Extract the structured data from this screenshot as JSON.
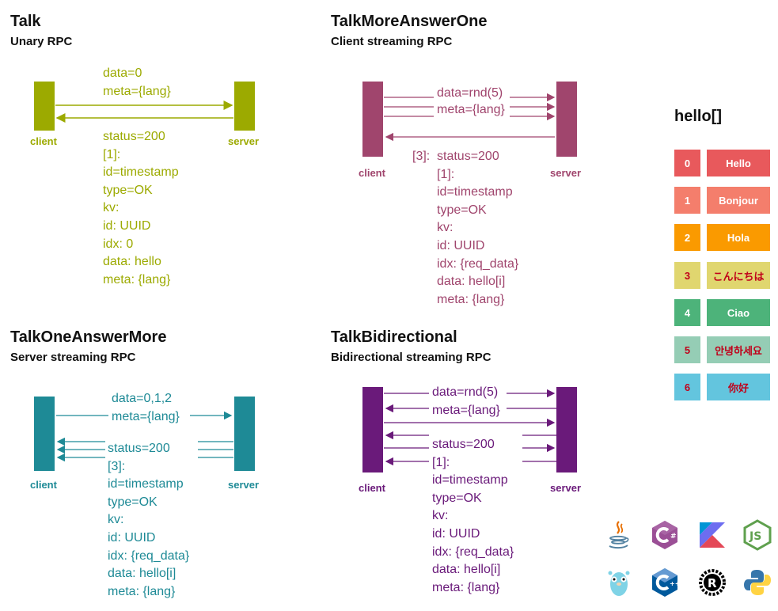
{
  "talk": {
    "title": "Talk",
    "subtitle": "Unary RPC",
    "client": "client",
    "server": "server",
    "request_lines": [
      "data=0",
      "meta={lang}"
    ],
    "response_lines": [
      "status=200",
      "[1]:",
      "id=timestamp",
      "type=OK",
      "kv:",
      "id: UUID",
      "idx: 0",
      "data: hello",
      "meta: {lang}"
    ],
    "color": "#9caa00"
  },
  "more_answer_one": {
    "title": "TalkMoreAnswerOne",
    "subtitle": "Client streaming RPC",
    "client": "client",
    "server": "server",
    "request_lines": [
      "data=rnd(5)",
      "meta={lang}"
    ],
    "count": "[3]:",
    "response_lines": [
      "status=200",
      "[1]:",
      "id=timestamp",
      "type=OK",
      "kv:",
      "id: UUID",
      "idx: {req_data}",
      "data: hello[i]",
      "meta: {lang}"
    ],
    "color": "#a0456d"
  },
  "one_answer_more": {
    "title": "TalkOneAnswerMore",
    "subtitle": "Server streaming RPC",
    "client": "client",
    "server": "server",
    "request_lines": [
      "data=0,1,2",
      "meta={lang}"
    ],
    "response_lines": [
      "status=200",
      "[3]:",
      "id=timestamp",
      "type=OK",
      "kv:",
      "id: UUID",
      "idx: {req_data}",
      "data: hello[i]",
      "meta: {lang}"
    ],
    "color": "#1e8a96"
  },
  "bidirectional": {
    "title": "TalkBidirectional",
    "subtitle": "Bidirectional streaming RPC",
    "client": "client",
    "server": "server",
    "request_lines": [
      "data=rnd(5)",
      "meta={lang}"
    ],
    "response_lines": [
      "status=200",
      "[1]:",
      "id=timestamp",
      "type=OK",
      "kv:",
      "id: UUID",
      "idx: {req_data}",
      "data: hello[i]",
      "meta: {lang}"
    ],
    "color": "#6a1a7a"
  },
  "hello": {
    "title": "hello[]",
    "rows": [
      {
        "index": "0",
        "word": "Hello",
        "bg": "#e8595c",
        "fg": "#ffffff"
      },
      {
        "index": "1",
        "word": "Bonjour",
        "bg": "#f47e6c",
        "fg": "#ffffff"
      },
      {
        "index": "2",
        "word": "Hola",
        "bg": "#fa9a00",
        "fg": "#ffffff"
      },
      {
        "index": "3",
        "word": "こんにちは",
        "bg": "#e0d66f",
        "fg": "#c0001a"
      },
      {
        "index": "4",
        "word": "Ciao",
        "bg": "#4db37a",
        "fg": "#ffffff"
      },
      {
        "index": "5",
        "word": "안녕하세요",
        "bg": "#95cdb5",
        "fg": "#c0001a"
      },
      {
        "index": "6",
        "word": "你好",
        "bg": "#63c5de",
        "fg": "#c0001a"
      }
    ]
  },
  "languages": [
    "java-icon",
    "csharp-icon",
    "kotlin-icon",
    "nodejs-icon",
    "go-icon",
    "cpp-icon",
    "rust-icon",
    "python-icon"
  ]
}
